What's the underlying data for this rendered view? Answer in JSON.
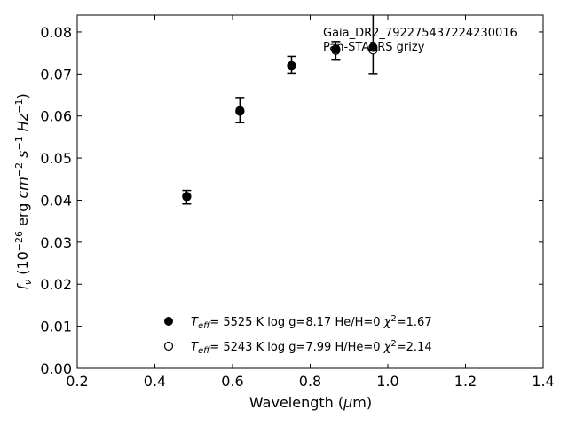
{
  "chart_data": {
    "type": "scatter",
    "xlabel": "Wavelength (μm)",
    "ylabel": "f_ν (10^-26 erg cm^-2 s^-1 Hz^-1)",
    "xlim": [
      0.2,
      1.4
    ],
    "ylim": [
      0.0,
      0.084
    ],
    "x_ticks": [
      0.2,
      0.4,
      0.6,
      0.8,
      1.0,
      1.2,
      1.4
    ],
    "x_tick_labels": [
      "0.2",
      "0.4",
      "0.6",
      "0.8",
      "1.0",
      "1.2",
      "1.4"
    ],
    "y_ticks": [
      0.0,
      0.01,
      0.02,
      0.03,
      0.04,
      0.05,
      0.06,
      0.07,
      0.08
    ],
    "y_tick_labels": [
      "0.00",
      "0.01",
      "0.02",
      "0.03",
      "0.04",
      "0.05",
      "0.06",
      "0.07",
      "0.08"
    ],
    "grid": false,
    "annotation": [
      "Gaia_DR2_792275437224230016",
      "Pan-STARRS grizy"
    ],
    "observed": {
      "x": [
        0.482,
        0.619,
        0.752,
        0.866,
        0.962
      ],
      "y": [
        0.0407,
        0.0614,
        0.0722,
        0.0755,
        0.0781
      ],
      "yerr": [
        0.0016,
        0.003,
        0.002,
        0.0022,
        0.008
      ]
    },
    "series": [
      {
        "marker": "filled",
        "x": [
          0.482,
          0.619,
          0.752,
          0.866,
          0.962
        ],
        "y": [
          0.0409,
          0.0613,
          0.072,
          0.0759,
          0.0763
        ]
      },
      {
        "marker": "open",
        "x": [
          0.482,
          0.619,
          0.752,
          0.866,
          0.962
        ],
        "y": [
          0.0408,
          0.0611,
          0.0719,
          0.0756,
          0.0757
        ]
      }
    ],
    "legend": [
      {
        "marker": "filled",
        "teff": "5525 K",
        "logg": "log g=8.17",
        "comp": "He/H=0",
        "chi2": "=1.67"
      },
      {
        "marker": "open",
        "teff": "5243 K",
        "logg": "log g=7.99",
        "comp": "H/He=0",
        "chi2": "=2.14"
      }
    ],
    "legend_position": "lower-center"
  }
}
